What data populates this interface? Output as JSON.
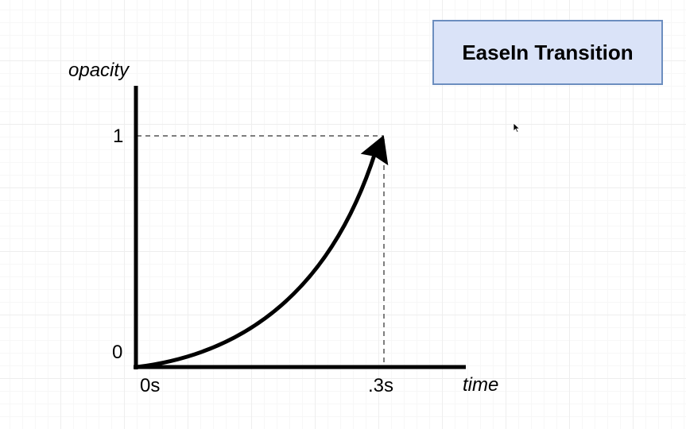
{
  "title": "EaseIn Transition",
  "y_axis_label": "opacity",
  "x_axis_label": "time",
  "y_ticks": [
    "1",
    "0"
  ],
  "x_ticks": [
    "0s",
    ".3s"
  ],
  "curve": {
    "start": {
      "time": 0,
      "opacity": 0
    },
    "end": {
      "time": 0.3,
      "opacity": 1
    },
    "easing": "ease-in"
  },
  "colors": {
    "title_fill": "#dae3f8",
    "title_border": "#6c8ebf",
    "ink": "#000000",
    "guide": "#555555"
  }
}
